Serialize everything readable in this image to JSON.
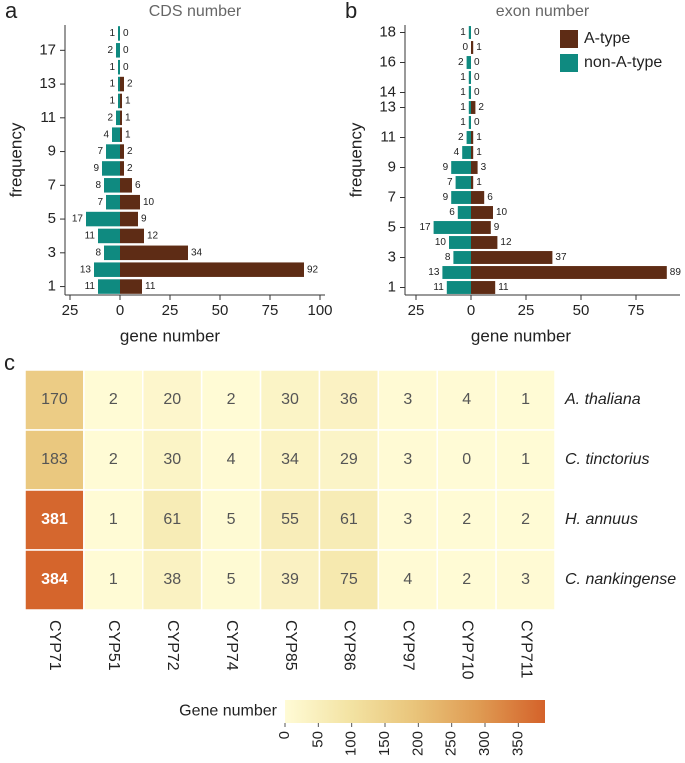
{
  "chart_data": [
    {
      "type": "butterfly",
      "panel_label": "a",
      "title": "CDS number",
      "y_label": "frequency",
      "x_label": "gene number",
      "categories": [
        "1",
        null,
        "3",
        null,
        "5",
        null,
        "7",
        null,
        "9",
        null,
        "11",
        null,
        "13",
        null,
        "17",
        null
      ],
      "series": [
        {
          "color": "#5e2c15",
          "values": [
            11,
            92,
            34,
            12,
            9,
            10,
            6,
            2,
            2,
            1,
            1,
            1,
            2,
            0,
            0,
            0
          ]
        },
        {
          "color": "#0f8a80",
          "side": "left",
          "values": [
            11,
            13,
            8,
            11,
            17,
            7,
            8,
            9,
            7,
            4,
            2,
            1,
            1,
            1,
            2,
            1
          ]
        }
      ],
      "xlim": [
        -27.5,
        102.5
      ],
      "xticks": [
        {
          "value": -25,
          "label": "25"
        },
        0,
        25,
        50,
        75,
        100
      ]
    },
    {
      "type": "butterfly",
      "panel_label": "b",
      "title": "exon number",
      "y_label": "frequency",
      "x_label": "gene number",
      "categories": [
        "1",
        null,
        "3",
        null,
        "5",
        null,
        "7",
        null,
        "9",
        null,
        "11",
        null,
        "13",
        "14",
        null,
        "16",
        null,
        "18"
      ],
      "series": [
        {
          "name": "A-type",
          "color": "#5e2c15",
          "values": [
            11,
            89,
            37,
            12,
            9,
            10,
            6,
            1,
            3,
            1,
            1,
            0,
            2,
            0,
            0,
            0,
            1,
            0
          ]
        },
        {
          "name": "non-A-type",
          "color": "#0f8a80",
          "side": "left",
          "values": [
            11,
            13,
            8,
            10,
            17,
            6,
            9,
            7,
            9,
            4,
            2,
            1,
            1,
            1,
            1,
            2,
            0,
            1
          ]
        }
      ],
      "xlim": [
        -30,
        95
      ],
      "xticks": [
        {
          "value": -25,
          "label": "25"
        },
        0,
        25,
        50,
        75
      ],
      "legend": "top-right"
    },
    {
      "type": "heatmap",
      "panel_label": "c",
      "x": [
        "CYP71",
        "CYP51",
        "CYP72",
        "CYP74",
        "CYP85",
        "CYP86",
        "CYP97",
        "CYP710",
        "CYP711"
      ],
      "y": [
        "A. thaliana",
        "C. tinctorius",
        "H. annuus",
        "C. nankingense"
      ],
      "values": [
        [
          170,
          2,
          20,
          2,
          30,
          36,
          3,
          4,
          1
        ],
        [
          183,
          2,
          30,
          4,
          34,
          29,
          3,
          0,
          1
        ],
        [
          381,
          1,
          61,
          5,
          55,
          61,
          3,
          2,
          2
        ],
        [
          384,
          1,
          38,
          5,
          39,
          75,
          4,
          2,
          3
        ]
      ],
      "colorbar_title": "Gene number",
      "zlim": [
        0,
        390
      ],
      "zticks": [
        0,
        50,
        100,
        150,
        200,
        250,
        300,
        350
      ],
      "colorscale": [
        "#fffbd6",
        "#f3e3a3",
        "#e9c47a",
        "#df9a52",
        "#d4622a"
      ]
    }
  ]
}
